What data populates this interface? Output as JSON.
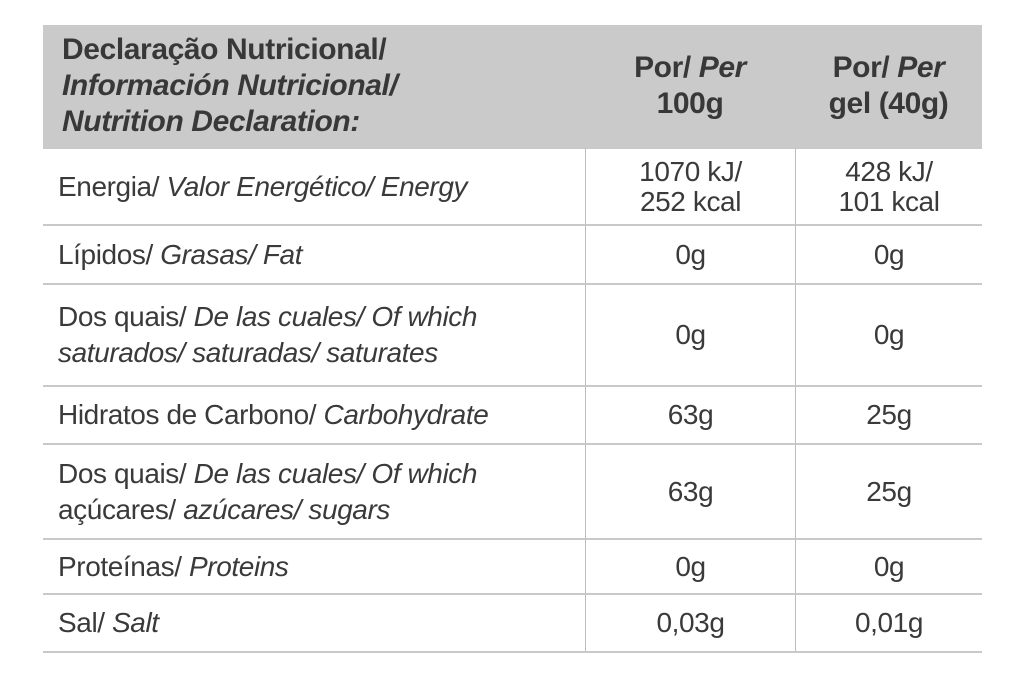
{
  "table": {
    "colors": {
      "header_bg": "#cacaca",
      "grid_line": "#c9c9c9",
      "text": "#3a3a3a"
    },
    "header": {
      "title_line1": "Declaração Nutricional/",
      "title_line2": "Información Nutricional/",
      "title_line3": "Nutrition Declaration:",
      "col_100g_line1_rm": "Por/ ",
      "col_100g_line1_it": "Per",
      "col_100g_line2": "100g",
      "col_gel_line1_rm": "Por/ ",
      "col_gel_line1_it": "Per",
      "col_gel_line2": "gel (40g)"
    },
    "rows": [
      {
        "name": "energy",
        "l1_rm": "Energia/ ",
        "l1_it": "Valor Energético/ Energy",
        "l2_rm": "",
        "l2_it": "",
        "per100g": [
          "1070 kJ/",
          "252 kcal"
        ],
        "per_gel": [
          "428 kJ/",
          "101 kcal"
        ]
      },
      {
        "name": "fat",
        "l1_rm": "Lípidos/ ",
        "l1_it": "Grasas/ Fat",
        "l2_rm": "",
        "l2_it": "",
        "per100g": [
          "0g"
        ],
        "per_gel": [
          "0g"
        ]
      },
      {
        "name": "saturates",
        "l1_rm": "Dos quais/ ",
        "l1_it": "De las cuales/ Of which",
        "l2_rm": "",
        "l2_it": "saturados/ saturadas/ saturates",
        "per100g": [
          "0g"
        ],
        "per_gel": [
          "0g"
        ]
      },
      {
        "name": "carbohydrate",
        "l1_rm": "Hidratos de Carbono/ ",
        "l1_it": "Carbohydrate",
        "l2_rm": "",
        "l2_it": "",
        "per100g": [
          "63g"
        ],
        "per_gel": [
          "25g"
        ]
      },
      {
        "name": "sugars",
        "l1_rm": "Dos quais/ ",
        "l1_it": "De las cuales/ Of which",
        "l2_rm": "açúcares/ ",
        "l2_it": "azúcares/ sugars",
        "per100g": [
          "63g"
        ],
        "per_gel": [
          "25g"
        ]
      },
      {
        "name": "proteins",
        "l1_rm": "Proteínas/ ",
        "l1_it": "Proteins",
        "l2_rm": "",
        "l2_it": "",
        "per100g": [
          "0g"
        ],
        "per_gel": [
          "0g"
        ]
      },
      {
        "name": "salt",
        "l1_rm": "Sal/ ",
        "l1_it": "Salt",
        "l2_rm": "",
        "l2_it": "",
        "per100g": [
          "0,03g"
        ],
        "per_gel": [
          "0,01g"
        ]
      }
    ]
  }
}
